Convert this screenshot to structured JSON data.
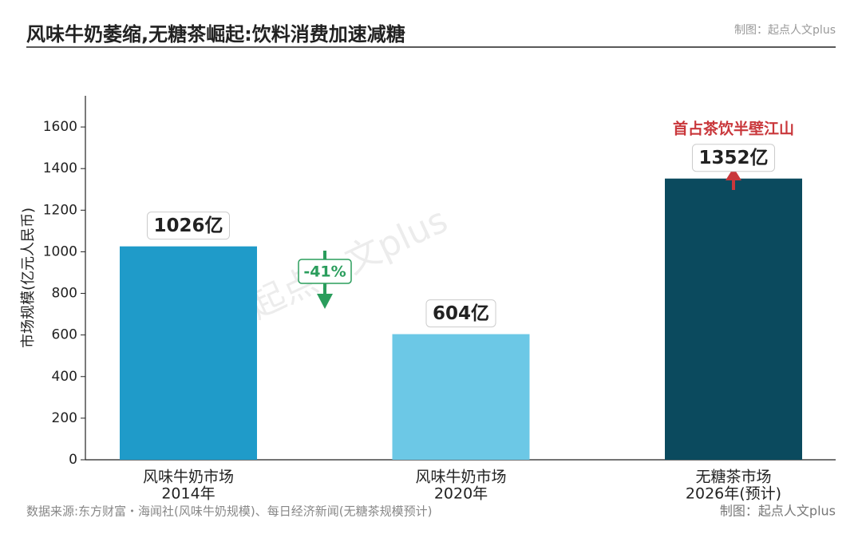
{
  "chart_data": {
    "type": "bar",
    "title": "风味牛奶萎缩,无糖茶崛起:饮料消费加速减糖",
    "credit": "制图：起点人文plus",
    "ylabel": "市场规模(亿元人民币)",
    "categories": [
      [
        "风味牛奶市场",
        "2014年"
      ],
      [
        "风味牛奶市场",
        "2020年"
      ],
      [
        "无糖茶市场",
        "2026年(预计)"
      ]
    ],
    "values": [
      1026,
      604,
      1352
    ],
    "value_labels": [
      "1026亿",
      "604亿",
      "1352亿"
    ],
    "colors": [
      "#1f9bc9",
      "#6cc8e6",
      "#0b4a5e"
    ],
    "ylim": [
      0,
      1750
    ],
    "yticks": [
      0,
      200,
      400,
      600,
      800,
      1000,
      1200,
      1400,
      1600
    ],
    "grid": false,
    "annotations": [
      "-41%",
      "首占茶饮半壁江山"
    ],
    "source": "数据来源:东方财富・海闻社(风味牛奶规模)、每日经济新闻(无糖茶规模预计)"
  }
}
